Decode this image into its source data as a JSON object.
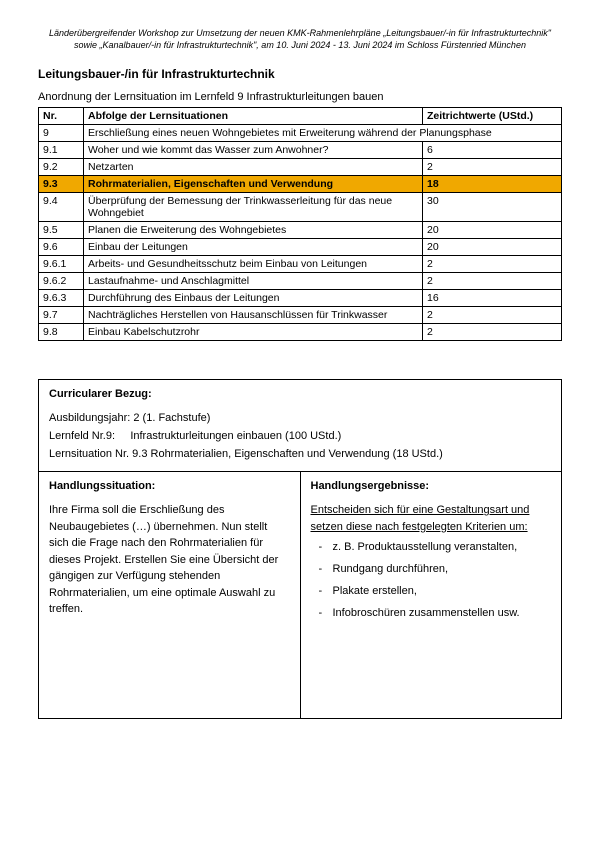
{
  "header": "Länderübergreifender Workshop zur Umsetzung der neuen KMK-Rahmenlehrpläne „Leitungsbauer/-in für Infrastrukturtechnik\" sowie „Kanalbauer/-in für Infrastrukturtechnik\", am 10. Juni 2024 - 13. Juni 2024 im Schloss Fürstenried München",
  "title": "Leitungsbauer-/in für Infrastrukturtechnik",
  "subtitle": "Anordnung der Lernsituation im Lernfeld 9 Infrastrukturleitungen bauen",
  "table_headers": {
    "nr": "Nr.",
    "desc": "Abfolge der Lernsituationen",
    "time": "Zeitrichtwerte (UStd.)"
  },
  "rows": [
    {
      "nr": "9",
      "desc": "Erschließung eines neuen Wohngebietes mit Erweiterung während der Planungsphase",
      "time": "",
      "span": true
    },
    {
      "nr": "9.1",
      "desc": "Woher und wie kommt das Wasser zum Anwohner?",
      "time": "6",
      "align": "center"
    },
    {
      "nr": "9.2",
      "desc": "Netzarten",
      "time": "2",
      "align": "center"
    },
    {
      "nr": "9.3",
      "desc": "Rohrmaterialien, Eigenschaften und Verwendung",
      "time": "18",
      "align": "center",
      "highlight": true
    },
    {
      "nr": "9.4",
      "desc": "Überprüfung der Bemessung der Trinkwasserleitung für das neue Wohngebiet",
      "time": "30",
      "align": "center"
    },
    {
      "nr": "9.5",
      "desc": "Planen die Erweiterung des Wohngebietes",
      "time": "20",
      "align": "center"
    },
    {
      "nr": "9.6",
      "desc": "Einbau der Leitungen",
      "time": "20",
      "align": "left"
    },
    {
      "nr": "9.6.1",
      "desc": "Arbeits- und Gesundheitsschutz beim Einbau von Leitungen",
      "time": "2",
      "align": "right"
    },
    {
      "nr": "9.6.2",
      "desc": "Lastaufnahme- und Anschlagmittel",
      "time": "2",
      "align": "right"
    },
    {
      "nr": "9.6.3",
      "desc": "Durchführung des Einbaus der Leitungen",
      "time": "16",
      "align": "right"
    },
    {
      "nr": "9.7",
      "desc": "Nachträgliches Herstellen von Hausanschlüssen für Trinkwasser",
      "time": "2",
      "align": "center"
    },
    {
      "nr": "9.8",
      "desc": "Einbau Kabelschutzrohr",
      "time": "2",
      "align": "center"
    }
  ],
  "curricular": {
    "heading": "Curricularer Bezug:",
    "line1": "Ausbildungsjahr: 2 (1. Fachstufe)",
    "line2a": "Lernfeld Nr.9:",
    "line2b": "Infrastrukturleitungen einbauen (100 UStd.)",
    "line3": "Lernsituation Nr. 9.3 Rohrmaterialien, Eigenschaften und Verwendung (18 UStd.)",
    "situation_heading": "Handlungssituation:",
    "situation_body": "Ihre Firma soll die Erschließung des Neubaugebietes (…)  übernehmen. Nun stellt sich die Frage nach den Rohrmaterialien für dieses Projekt. Erstellen Sie eine Übersicht der gängigen zur Verfügung stehenden Rohrmaterialien, um eine optimale Auswahl zu treffen.",
    "results_heading": "Handlungsergebnisse:",
    "results_intro": "Entscheiden sich für eine Gestaltungsart und setzen diese nach festgelegten Kriterien um:",
    "results_items": [
      "z. B. Produktausstellung veranstalten,",
      "Rundgang durchführen,",
      "Plakate erstellen,",
      "Infobroschüren zusammenstellen usw."
    ]
  }
}
